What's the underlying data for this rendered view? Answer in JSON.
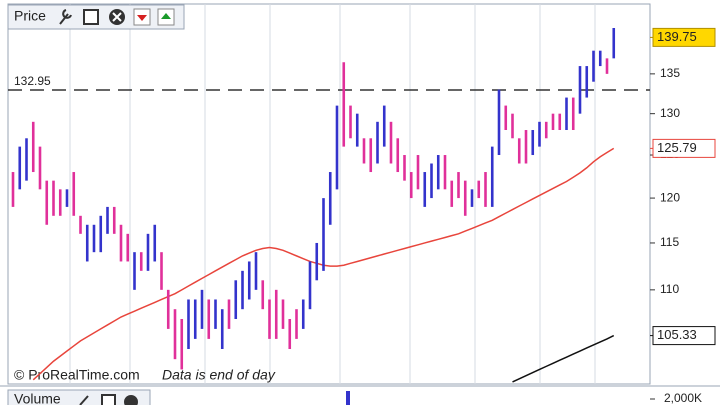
{
  "chart_data": {
    "type": "ohlc",
    "panel_title": "Price",
    "credit": "© ProRealTime.com",
    "note": "Data is end of day",
    "log_scale": true,
    "ylim": [
      100.7,
      143.7
    ],
    "yticks": [
      110,
      115,
      120,
      125,
      130,
      135
    ],
    "up_color": "#3333cc",
    "down_color": "#e0309a",
    "low": [
      119,
      121,
      122,
      123,
      121,
      117,
      118,
      118,
      119,
      118,
      116,
      113,
      114,
      114,
      116,
      116,
      113,
      113,
      110,
      112,
      112,
      113,
      110,
      106,
      103,
      102,
      104,
      105,
      106,
      105,
      106,
      104,
      106,
      107,
      108,
      109,
      110,
      108,
      105,
      105,
      106,
      104,
      105,
      106,
      108,
      111,
      112,
      117,
      121,
      126,
      127,
      126,
      124,
      123,
      124,
      126,
      124,
      123,
      122,
      120,
      121,
      119,
      120,
      121,
      121,
      119,
      120,
      118,
      119,
      120,
      119,
      119,
      125,
      128,
      127,
      124,
      124,
      125,
      126,
      127,
      128,
      128,
      128,
      128,
      130,
      132,
      134,
      136,
      135,
      137
    ],
    "high": [
      123,
      126,
      127,
      129,
      126,
      122,
      122,
      121,
      121,
      123,
      118,
      117,
      117,
      118,
      119,
      119,
      117,
      116,
      114,
      114,
      116,
      117,
      114,
      110,
      108,
      107,
      109,
      109,
      110,
      109,
      109,
      108,
      109,
      111,
      112,
      113,
      114,
      111,
      109,
      110,
      109,
      107,
      108,
      109,
      113,
      115,
      120,
      123,
      131,
      136.5,
      131,
      130,
      127,
      127,
      129,
      131,
      129,
      127,
      125,
      123,
      125,
      123,
      124,
      125,
      125,
      122,
      123,
      122,
      121,
      122,
      123,
      126,
      133,
      131,
      130,
      127,
      128,
      128,
      129,
      129,
      130,
      130,
      132,
      132,
      136,
      136,
      138,
      138,
      137,
      141
    ],
    "up": [
      false,
      true,
      true,
      false,
      false,
      false,
      false,
      false,
      true,
      false,
      false,
      true,
      true,
      true,
      true,
      false,
      false,
      false,
      true,
      false,
      true,
      true,
      false,
      false,
      false,
      false,
      true,
      true,
      true,
      false,
      true,
      true,
      false,
      true,
      true,
      true,
      true,
      false,
      false,
      false,
      false,
      false,
      false,
      true,
      true,
      true,
      true,
      true,
      true,
      false,
      false,
      true,
      false,
      false,
      true,
      true,
      false,
      false,
      false,
      false,
      false,
      true,
      true,
      true,
      false,
      false,
      false,
      false,
      true,
      false,
      false,
      true,
      true,
      false,
      false,
      false,
      false,
      true,
      true,
      false,
      false,
      false,
      true,
      false,
      true,
      true,
      true,
      true,
      false,
      true
    ],
    "last_price": 139.75,
    "last_price_color": "#ffd700",
    "price_line": 132.95,
    "lines": [
      {
        "color": "#e8453c",
        "values": [
          null,
          null,
          null,
          101.0,
          101.6,
          102.2,
          102.8,
          103.3,
          103.8,
          104.3,
          104.8,
          105.2,
          105.6,
          106,
          106.4,
          106.8,
          107.2,
          107.5,
          107.8,
          108.1,
          108.4,
          108.7,
          109,
          109.3,
          109.6,
          110,
          110.4,
          110.8,
          111.2,
          111.6,
          112,
          112.4,
          112.8,
          113.2,
          113.6,
          113.9,
          114.2,
          114.4,
          114.5,
          114.4,
          114.2,
          113.9,
          113.6,
          113.3,
          113,
          112.8,
          112.6,
          112.5,
          112.5,
          112.6,
          112.8,
          113,
          113.2,
          113.4,
          113.6,
          113.8,
          114,
          114.2,
          114.4,
          114.6,
          114.8,
          115,
          115.2,
          115.4,
          115.6,
          115.8,
          116,
          116.3,
          116.6,
          116.9,
          117.2,
          117.5,
          117.9,
          118.3,
          118.7,
          119.1,
          119.5,
          119.9,
          120.3,
          120.7,
          121.1,
          121.5,
          121.9,
          122.4,
          122.9,
          123.5,
          124.2,
          124.8,
          125.3,
          125.79
        ]
      },
      {
        "color": "#111111",
        "values": [
          null,
          null,
          null,
          null,
          null,
          null,
          null,
          null,
          null,
          null,
          null,
          null,
          null,
          null,
          null,
          null,
          null,
          null,
          null,
          null,
          null,
          null,
          null,
          null,
          null,
          null,
          null,
          null,
          null,
          null,
          null,
          null,
          null,
          null,
          null,
          null,
          null,
          null,
          null,
          null,
          null,
          null,
          null,
          null,
          null,
          null,
          null,
          null,
          null,
          null,
          null,
          null,
          null,
          null,
          null,
          null,
          null,
          null,
          null,
          null,
          null,
          null,
          null,
          null,
          null,
          null,
          null,
          null,
          null,
          null,
          null,
          null,
          null,
          null,
          100.8,
          101.1,
          101.4,
          101.7,
          102,
          102.3,
          102.6,
          102.9,
          103.2,
          103.5,
          103.8,
          104.1,
          104.4,
          104.7,
          105,
          105.33
        ]
      }
    ],
    "volume_panel_title": "Volume",
    "volume_ytick": {
      "value": 2000000,
      "label": "2,000K"
    }
  }
}
